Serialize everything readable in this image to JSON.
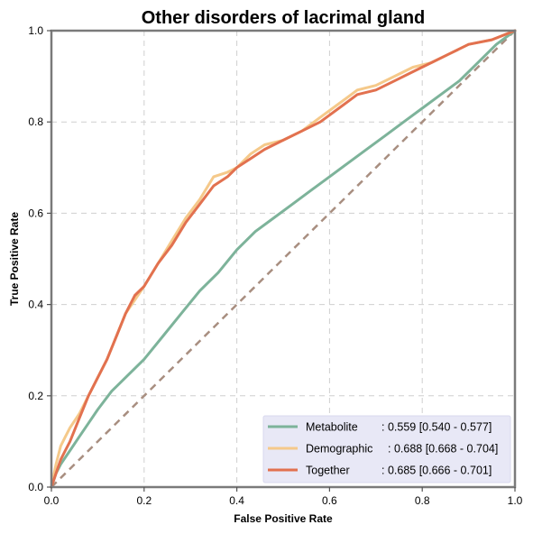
{
  "chart_data": {
    "type": "line",
    "title": "Other disorders of lacrimal gland",
    "xlabel": "False Positive Rate",
    "ylabel": "True Positive Rate",
    "xlim": [
      0,
      1
    ],
    "ylim": [
      0,
      1
    ],
    "xticks": [
      "0.0",
      "0.2",
      "0.4",
      "0.6",
      "0.8",
      "1.0"
    ],
    "yticks": [
      "0.0",
      "0.2",
      "0.4",
      "0.6",
      "0.8",
      "1.0"
    ],
    "grid": true,
    "legend_position": "bottom-right",
    "diagonal": {
      "x": [
        0,
        1
      ],
      "y": [
        0,
        1
      ],
      "color": "#a88e80"
    },
    "series": [
      {
        "name": "Metabolite",
        "stat": ": 0.559 [0.540 - 0.577]",
        "color": "#7db39a",
        "x": [
          0,
          0.01,
          0.02,
          0.04,
          0.06,
          0.08,
          0.1,
          0.13,
          0.16,
          0.2,
          0.24,
          0.28,
          0.32,
          0.36,
          0.4,
          0.44,
          0.48,
          0.52,
          0.56,
          0.6,
          0.64,
          0.68,
          0.72,
          0.76,
          0.8,
          0.84,
          0.88,
          0.92,
          0.96,
          1.0
        ],
        "y": [
          0,
          0.03,
          0.05,
          0.08,
          0.11,
          0.14,
          0.17,
          0.21,
          0.24,
          0.28,
          0.33,
          0.38,
          0.43,
          0.47,
          0.52,
          0.56,
          0.59,
          0.62,
          0.65,
          0.68,
          0.71,
          0.74,
          0.77,
          0.8,
          0.83,
          0.86,
          0.89,
          0.93,
          0.97,
          1.0
        ]
      },
      {
        "name": "Demographic",
        "stat": ": 0.688 [0.668 - 0.704]",
        "color": "#f5c98a",
        "x": [
          0,
          0.01,
          0.02,
          0.03,
          0.04,
          0.06,
          0.08,
          0.1,
          0.12,
          0.14,
          0.16,
          0.18,
          0.2,
          0.23,
          0.26,
          0.29,
          0.32,
          0.35,
          0.38,
          0.4,
          0.43,
          0.46,
          0.5,
          0.54,
          0.58,
          0.62,
          0.66,
          0.7,
          0.74,
          0.78,
          0.82,
          0.86,
          0.9,
          0.95,
          1.0
        ],
        "y": [
          0,
          0.05,
          0.09,
          0.11,
          0.13,
          0.16,
          0.2,
          0.24,
          0.28,
          0.33,
          0.38,
          0.41,
          0.44,
          0.49,
          0.54,
          0.59,
          0.63,
          0.68,
          0.69,
          0.7,
          0.73,
          0.75,
          0.76,
          0.78,
          0.81,
          0.84,
          0.87,
          0.88,
          0.9,
          0.92,
          0.93,
          0.95,
          0.97,
          0.98,
          1.0
        ]
      },
      {
        "name": "Together",
        "stat": ": 0.685 [0.666 - 0.701]",
        "color": "#e2714f",
        "x": [
          0,
          0.01,
          0.02,
          0.03,
          0.04,
          0.06,
          0.08,
          0.1,
          0.12,
          0.14,
          0.16,
          0.18,
          0.2,
          0.23,
          0.26,
          0.29,
          0.32,
          0.35,
          0.38,
          0.4,
          0.43,
          0.46,
          0.5,
          0.54,
          0.58,
          0.62,
          0.66,
          0.7,
          0.74,
          0.78,
          0.82,
          0.86,
          0.9,
          0.95,
          1.0
        ],
        "y": [
          0,
          0.03,
          0.06,
          0.08,
          0.1,
          0.15,
          0.2,
          0.24,
          0.28,
          0.33,
          0.38,
          0.42,
          0.44,
          0.49,
          0.53,
          0.58,
          0.62,
          0.66,
          0.68,
          0.7,
          0.72,
          0.74,
          0.76,
          0.78,
          0.8,
          0.83,
          0.86,
          0.87,
          0.89,
          0.91,
          0.93,
          0.95,
          0.97,
          0.98,
          1.0
        ]
      }
    ]
  }
}
